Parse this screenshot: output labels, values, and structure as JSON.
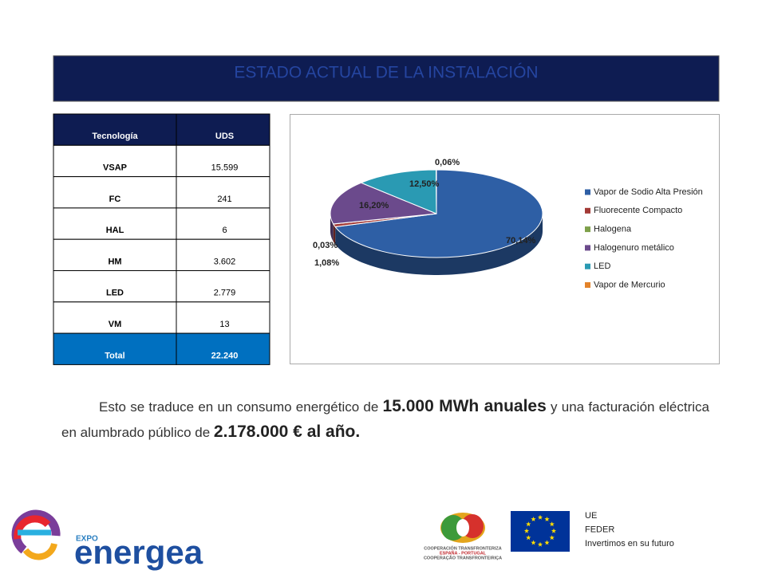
{
  "header": {
    "title": "ESTADO ACTUAL DE LA INSTALACIÓN"
  },
  "table": {
    "columns": [
      "Tecnología",
      "UDS"
    ],
    "rows": [
      [
        "VSAP",
        "15.599"
      ],
      [
        "FC",
        "241"
      ],
      [
        "HAL",
        "6"
      ],
      [
        "HM",
        "3.602"
      ],
      [
        "LED",
        "2.779"
      ],
      [
        "VM",
        "13"
      ]
    ],
    "total": [
      "Total",
      "22.240"
    ]
  },
  "chart_data": {
    "type": "pie",
    "categories": [
      "Vapor de Sodio Alta Presión",
      "Fluorecente Compacto",
      "Halogena",
      "Halogenuro metálico",
      "LED",
      "Vapor de Mercurio"
    ],
    "values": [
      70.14,
      1.08,
      0.03,
      16.2,
      12.5,
      0.06
    ],
    "value_labels": [
      "70,14%",
      "1,08%",
      "0,03%",
      "16,20%",
      "12,50%",
      "0,06%"
    ],
    "colors": [
      "#2e5fa5",
      "#a33a36",
      "#7ea04a",
      "#6b4a8c",
      "#2a9ab3",
      "#e3832a"
    ]
  },
  "paragraph": {
    "parts": [
      {
        "text": "Esto se traduce en un consumo energético de "
      },
      {
        "text": "15.000 MWh anuales",
        "bold": true
      },
      {
        "text": " y una facturación eléctrica en alumbrado público de "
      },
      {
        "text": "2.178.000 € al año.",
        "bold": true
      }
    ]
  },
  "footer": {
    "logo_expo": "EXPO",
    "logo_name": "energea",
    "coop": [
      "COOPERACIÓN TRANSFRONTERIZA",
      "ESPAÑA - PORTUGAL",
      "COOPERAÇÃO TRANSFRONTEIRIÇA"
    ],
    "eu": [
      "UE",
      "FEDER",
      "Invertimos en su futuro"
    ]
  }
}
